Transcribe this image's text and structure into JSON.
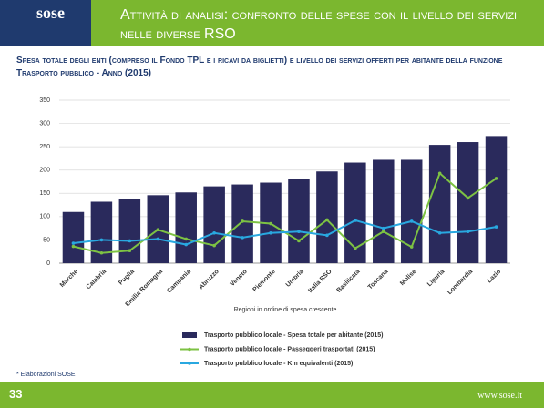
{
  "header": {
    "logo": "sose",
    "title": "Attività di analisi: confronto delle spese con il livello dei servizi nelle diverse RSO"
  },
  "chart_data": {
    "type": "bar",
    "title": "Spesa totale degli enti (compreso il Fondo TPL e i ricavi da biglietti) e livello dei servizi offerti per abitante della funzione Trasporto pubblico - Anno (2015)",
    "x_label": "Regioni in ordine di spesa crescente",
    "categories": [
      "Marche",
      "Calabria",
      "Puglia",
      "Emilia Romagna",
      "Campania",
      "Abruzzo",
      "Veneto",
      "Piemonte",
      "Umbria",
      "Italia RSO",
      "Basilicata",
      "Toscana",
      "Molise",
      "Liguria",
      "Lombardia",
      "Lazio"
    ],
    "series": [
      {
        "name": "Trasporto pubblico locale - Spesa totale per abitante (2015)",
        "type": "bar",
        "color": "#2a2a5c",
        "values": [
          110,
          132,
          138,
          146,
          152,
          165,
          169,
          173,
          181,
          197,
          216,
          222,
          222,
          254,
          260,
          273
        ]
      },
      {
        "name": "Trasporto pubblico locale - Passeggeri trasportati  (2015)",
        "type": "line",
        "color": "#7dc243",
        "values": [
          36,
          22,
          27,
          72,
          52,
          38,
          90,
          85,
          48,
          93,
          32,
          68,
          35,
          193,
          140,
          182
        ]
      },
      {
        "name": "Trasporto pubblico locale - Km equivalenti (2015)",
        "type": "line",
        "color": "#29a8e0",
        "values": [
          43,
          50,
          48,
          52,
          40,
          65,
          55,
          65,
          68,
          60,
          92,
          75,
          90,
          65,
          68,
          78
        ]
      }
    ],
    "ylim": [
      0,
      350
    ],
    "yticks": [
      0,
      50,
      100,
      150,
      200,
      250,
      300,
      350
    ],
    "grid": true
  },
  "footnote": "* Elaborazioni SOSE",
  "footer": {
    "page": "33",
    "url": "www.sose.it"
  }
}
